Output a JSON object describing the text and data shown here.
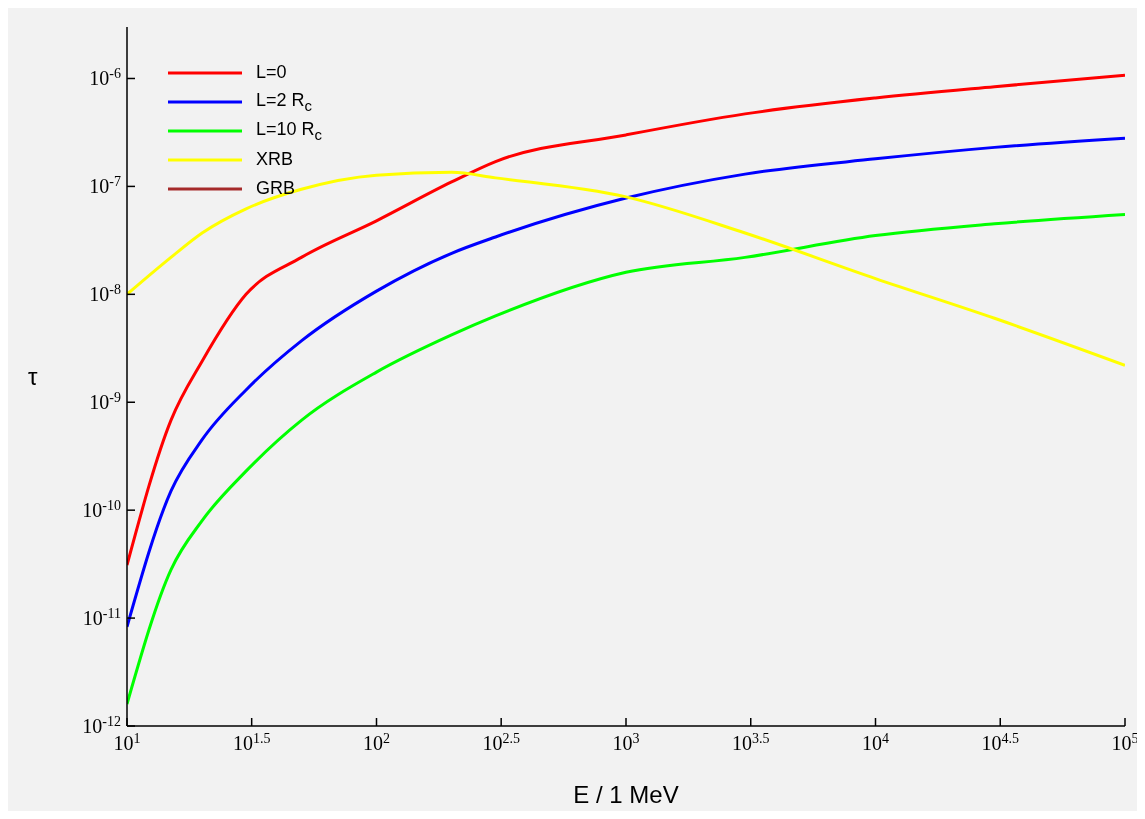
{
  "chart_data": {
    "type": "line",
    "xlabel": "E / 1 MeV",
    "ylabel": "τ",
    "log": "xy",
    "legend": "top left",
    "marker": "none",
    "line_style": "solid",
    "grid": false,
    "x": [
      10,
      15,
      20,
      30,
      50,
      100,
      200,
      300,
      1000,
      3000,
      10000,
      30000,
      100000
    ],
    "xlim": [
      10,
      100000
    ],
    "xticks": [
      {
        "value": 10,
        "label": "10$^{1}$"
      },
      {
        "value": 31.6,
        "label": "10$^{1.5}$"
      },
      {
        "value": 100,
        "label": "10$^{2}$"
      },
      {
        "value": 316,
        "label": "10$^{2.5}$"
      },
      {
        "value": 1000,
        "label": "10$^{3}$"
      },
      {
        "value": 3162,
        "label": "10$^{3.5}$"
      },
      {
        "value": 10000,
        "label": "10$^{4}$"
      },
      {
        "value": 31623,
        "label": "10$^{4.5}$"
      },
      {
        "value": 100000,
        "label": "10$^{5}$"
      }
    ],
    "ylim": [
      1e-12,
      3e-06
    ],
    "yticks": [
      {
        "value": 1e-12,
        "label": "10$^{-12}$"
      },
      {
        "value": 1e-11,
        "label": "10$^{-11}$"
      },
      {
        "value": 1e-10,
        "label": "10$^{-10}$"
      },
      {
        "value": 1e-09,
        "label": "10$^{-9}$"
      },
      {
        "value": 1e-08,
        "label": "10$^{-8}$"
      },
      {
        "value": 1e-07,
        "label": "10$^{-7}$"
      },
      {
        "value": 1e-06,
        "label": "10$^{-6}$"
      }
    ],
    "series": [
      {
        "name": "L=0",
        "color": "#ff0000",
        "values": [
          3.1e-11,
          6.8e-10,
          2.4e-09,
          1e-08,
          2.2e-08,
          4.8e-08,
          1.1e-07,
          1.7e-07,
          3e-07,
          4.7e-07,
          6.6e-07,
          8.4e-07,
          1.07e-06
        ]
      },
      {
        "name": "L=2 R$_{c}$",
        "color": "#0000ff",
        "values": [
          8.3e-12,
          1.5e-10,
          4.5e-10,
          1.3e-09,
          3.7e-09,
          1.07e-08,
          2.4e-08,
          3.4e-08,
          7.8e-08,
          1.3e-07,
          1.8e-07,
          2.3e-07,
          2.8e-07
        ]
      },
      {
        "name": "L=10 R$_{c}$",
        "color": "#00ff00",
        "values": [
          1.6e-12,
          2.8e-11,
          8e-11,
          2.3e-10,
          6.8e-10,
          1.9e-09,
          4.2e-09,
          6.3e-09,
          1.6e-08,
          2.2e-08,
          3.5e-08,
          4.5e-08,
          5.5e-08
        ]
      },
      {
        "name": "XRB",
        "color": "#ffff00",
        "values": [
          1e-08,
          2.2e-08,
          3.7e-08,
          6.2e-08,
          9.4e-08,
          1.27e-07,
          1.35e-07,
          1.2e-07,
          8e-08,
          3.7e-08,
          1.4e-08,
          6e-09,
          2.2e-09
        ]
      },
      {
        "name": "GRB",
        "color": "#a52a2a",
        "values": [
          null,
          null,
          null,
          null,
          null,
          null,
          null,
          null,
          null,
          null,
          null,
          null,
          null
        ]
      }
    ]
  }
}
